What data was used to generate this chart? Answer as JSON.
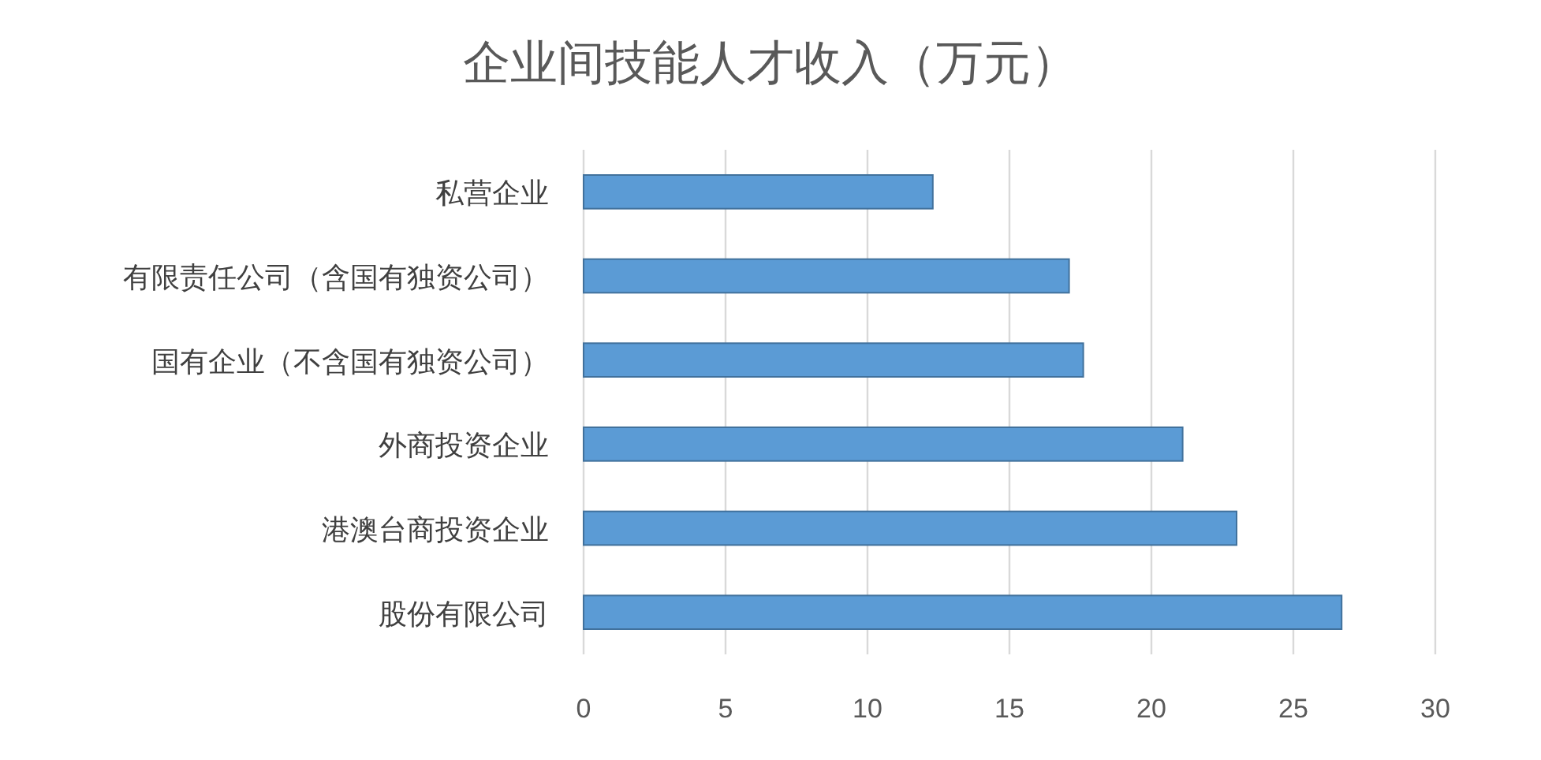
{
  "chart_data": {
    "type": "bar",
    "orientation": "horizontal",
    "title": "企业间技能人才收入（万元）",
    "categories": [
      "私营企业",
      "有限责任公司（含国有独资公司）",
      "国有企业（不含国有独资公司）",
      "外商投资企业",
      "港澳台商投资企业",
      "股份有限公司"
    ],
    "values": [
      12.3,
      17.1,
      17.6,
      21.1,
      23.0,
      26.7
    ],
    "color": "#5b9bd5",
    "xlim": [
      0,
      30
    ],
    "xticks": [
      0,
      5,
      10,
      15,
      20,
      25,
      30
    ],
    "grid": "x"
  }
}
